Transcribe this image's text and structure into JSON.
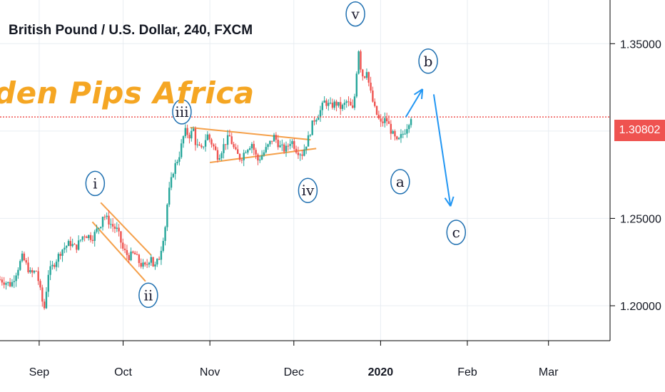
{
  "header": {
    "symbol_title": "British Pound / U.S. Dollar, 240, FXCM"
  },
  "watermark": {
    "text": "den Pips Africa"
  },
  "last_price": {
    "label": "1.30802",
    "value": 1.30802,
    "color": "#ef5350"
  },
  "colors": {
    "up": "#26a69a",
    "down": "#ef5350",
    "wave": "#1e6fb0",
    "arrow": "#2196f3",
    "pattern": "#f5a04a",
    "watermark": "#f5a623",
    "grid": "#e8edf2"
  },
  "chart_data": {
    "type": "candlestick",
    "title": "British Pound / U.S. Dollar, 240, FXCM",
    "y_ticks": [
      "1.35000",
      "1.25000",
      "1.20000"
    ],
    "y_tick_values": [
      1.35,
      1.25,
      1.2
    ],
    "ylim": [
      1.18,
      1.375
    ],
    "x_ticks": [
      "Sep",
      "Oct",
      "Nov",
      "Dec",
      "2020",
      "Feb",
      "Mar"
    ],
    "x_tick_days": [
      0,
      30,
      61,
      91,
      122,
      153,
      182
    ],
    "xlim": [
      -14,
      204
    ],
    "grid": true,
    "price_path": [
      [
        -14,
        1.215
      ],
      [
        -10,
        1.212
      ],
      [
        -6,
        1.228
      ],
      [
        -3,
        1.218
      ],
      [
        -1,
        1.22
      ],
      [
        0,
        1.212
      ],
      [
        1,
        1.203
      ],
      [
        2,
        1.198
      ],
      [
        3,
        1.218
      ],
      [
        5,
        1.223
      ],
      [
        8,
        1.232
      ],
      [
        11,
        1.236
      ],
      [
        13,
        1.233
      ],
      [
        16,
        1.241
      ],
      [
        19,
        1.239
      ],
      [
        22,
        1.247
      ],
      [
        20,
        1.25
      ],
      [
        23,
        1.252
      ],
      [
        26,
        1.246
      ],
      [
        28,
        1.243
      ],
      [
        30,
        1.232
      ],
      [
        32,
        1.228
      ],
      [
        34,
        1.23
      ],
      [
        36,
        1.224
      ],
      [
        38,
        1.222
      ],
      [
        40,
        1.229
      ],
      [
        41,
        1.221
      ],
      [
        43,
        1.228
      ],
      [
        45,
        1.245
      ],
      [
        46,
        1.262
      ],
      [
        48,
        1.278
      ],
      [
        50,
        1.286
      ],
      [
        52,
        1.3
      ],
      [
        54,
        1.297
      ],
      [
        55,
        1.302
      ],
      [
        56,
        1.292
      ],
      [
        58,
        1.289
      ],
      [
        60,
        1.298
      ],
      [
        62,
        1.292
      ],
      [
        64,
        1.285
      ],
      [
        66,
        1.292
      ],
      [
        68,
        1.297
      ],
      [
        70,
        1.288
      ],
      [
        72,
        1.284
      ],
      [
        74,
        1.29
      ],
      [
        76,
        1.293
      ],
      [
        78,
        1.283
      ],
      [
        80,
        1.287
      ],
      [
        82,
        1.292
      ],
      [
        84,
        1.297
      ],
      [
        86,
        1.291
      ],
      [
        88,
        1.289
      ],
      [
        90,
        1.295
      ],
      [
        92,
        1.289
      ],
      [
        94,
        1.287
      ],
      [
        96,
        1.295
      ],
      [
        98,
        1.306
      ],
      [
        100,
        1.31
      ],
      [
        102,
        1.317
      ],
      [
        104,
        1.314
      ],
      [
        106,
        1.316
      ],
      [
        108,
        1.313
      ],
      [
        110,
        1.317
      ],
      [
        112,
        1.312
      ],
      [
        113,
        1.323
      ],
      [
        114,
        1.349
      ],
      [
        115,
        1.335
      ],
      [
        116,
        1.33
      ],
      [
        117,
        1.336
      ],
      [
        118,
        1.325
      ],
      [
        119,
        1.318
      ],
      [
        120,
        1.312
      ],
      [
        122,
        1.304
      ],
      [
        124,
        1.307
      ],
      [
        126,
        1.299
      ],
      [
        128,
        1.293
      ],
      [
        129,
        1.296
      ],
      [
        131,
        1.301
      ],
      [
        133,
        1.309
      ]
    ],
    "annotations": [
      {
        "label": "i",
        "x": 20,
        "y": 1.27
      },
      {
        "label": "ii",
        "x": 39,
        "y": 1.206
      },
      {
        "label": "iii",
        "x": 51,
        "y": 1.311
      },
      {
        "label": "iv",
        "x": 96,
        "y": 1.266
      },
      {
        "label": "v",
        "x": 113,
        "y": 1.367
      },
      {
        "label": "a",
        "x": 129,
        "y": 1.271
      },
      {
        "label": "b",
        "x": 139,
        "y": 1.34
      },
      {
        "label": "c",
        "x": 149,
        "y": 1.242
      }
    ],
    "projection_arrows": [
      {
        "from": [
          131,
          1.308
        ],
        "to": [
          137,
          1.324
        ]
      },
      {
        "from": [
          141,
          1.321
        ],
        "to": [
          147,
          1.257
        ]
      }
    ],
    "pattern_lines": [
      {
        "name": "wave-ii-wedge-upper",
        "from": [
          22,
          1.259
        ],
        "to": [
          40,
          1.229
        ]
      },
      {
        "name": "wave-ii-wedge-lower",
        "from": [
          19,
          1.248
        ],
        "to": [
          38,
          1.214
        ]
      },
      {
        "name": "wave-iv-triangle-upper",
        "from": [
          54,
          1.302
        ],
        "to": [
          97,
          1.295
        ]
      },
      {
        "name": "wave-iv-triangle-lower",
        "from": [
          61,
          1.282
        ],
        "to": [
          99,
          1.29
        ]
      }
    ],
    "last_price_line": 1.30802
  }
}
